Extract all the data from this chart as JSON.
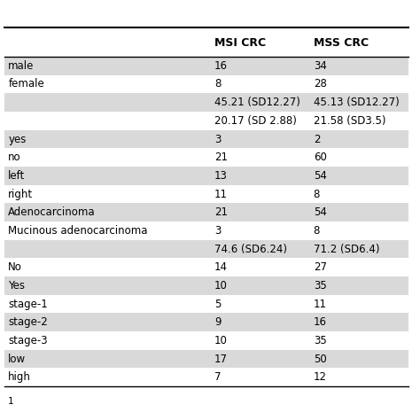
{
  "title": "",
  "col_headers": [
    "",
    "MSI CRC",
    "MSS CRC"
  ],
  "rows": [
    {
      "label": "male",
      "msi": "16",
      "mss": "34",
      "shaded": true
    },
    {
      "label": "female",
      "msi": "8",
      "mss": "28",
      "shaded": false
    },
    {
      "label": "",
      "msi": "45.21 (SD12.27)",
      "mss": "45.13 (SD12.27)",
      "shaded": true
    },
    {
      "label": "",
      "msi": "20.17 (SD 2.88)",
      "mss": "21.58 (SD3.5)",
      "shaded": false
    },
    {
      "label": "yes",
      "msi": "3",
      "mss": "2",
      "shaded": true
    },
    {
      "label": "no",
      "msi": "21",
      "mss": "60",
      "shaded": false
    },
    {
      "label": "left",
      "msi": "13",
      "mss": "54",
      "shaded": true
    },
    {
      "label": "right",
      "msi": "11",
      "mss": "8",
      "shaded": false
    },
    {
      "label": "Adenocarcinoma",
      "msi": "21",
      "mss": "54",
      "shaded": true
    },
    {
      "label": "Mucinous adenocarcinoma",
      "msi": "3",
      "mss": "8",
      "shaded": false
    },
    {
      "label": "",
      "msi": "74.6 (SD6.24)",
      "mss": "71.2 (SD6.4)",
      "shaded": true
    },
    {
      "label": "No",
      "msi": "14",
      "mss": "27",
      "shaded": false
    },
    {
      "label": "Yes",
      "msi": "10",
      "mss": "35",
      "shaded": true
    },
    {
      "label": "stage-1",
      "msi": "5",
      "mss": "11",
      "shaded": false
    },
    {
      "label": "stage-2",
      "msi": "9",
      "mss": "16",
      "shaded": true
    },
    {
      "label": "stage-3",
      "msi": "10",
      "mss": "35",
      "shaded": false
    },
    {
      "label": "low",
      "msi": "17",
      "mss": "50",
      "shaded": true
    },
    {
      "label": "high",
      "msi": "7",
      "mss": "12",
      "shaded": false
    }
  ],
  "shaded_color": "#d9d9d9",
  "white_color": "#ffffff",
  "header_line_color": "#000000",
  "text_color": "#000000",
  "bold_header": true,
  "font_size": 8.5,
  "header_font_size": 9.0,
  "footer_text": "1"
}
